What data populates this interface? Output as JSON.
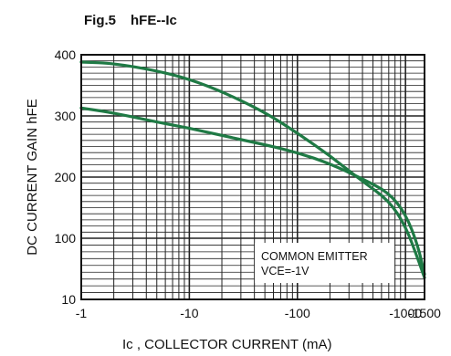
{
  "chart_data": {
    "type": "line",
    "title": "Fig.5",
    "subtitle": "hFE--Ic",
    "xlabel": "Ic , COLLECTOR CURRENT (mA)",
    "ylabel": "DC CURRENT GAIN hFE",
    "x_scale": "log",
    "xlim": [
      1,
      1500
    ],
    "ylim": [
      10,
      400
    ],
    "x_ticks": [
      "-1",
      "-10",
      "-100",
      "-1000",
      "-1500"
    ],
    "y_ticks": [
      "10",
      "100",
      "200",
      "300",
      "400"
    ],
    "grid": true,
    "annotation": {
      "line1": "COMMON EMITTER",
      "line2": "VCE=-1V"
    },
    "line_color": "#1f7a45",
    "series": [
      {
        "x": [
          1,
          2,
          5,
          10,
          20,
          50,
          100,
          200,
          400,
          700,
          1000,
          1300,
          1500
        ],
        "y": [
          388,
          386,
          374,
          360,
          340,
          306,
          272,
          235,
          193,
          162,
          120,
          70,
          42
        ]
      },
      {
        "x": [
          1,
          2,
          5,
          10,
          20,
          50,
          100,
          200,
          400,
          700,
          1000,
          1300,
          1500
        ],
        "y": [
          313,
          305,
          290,
          280,
          268,
          253,
          240,
          222,
          197,
          175,
          140,
          90,
          47
        ]
      }
    ]
  }
}
